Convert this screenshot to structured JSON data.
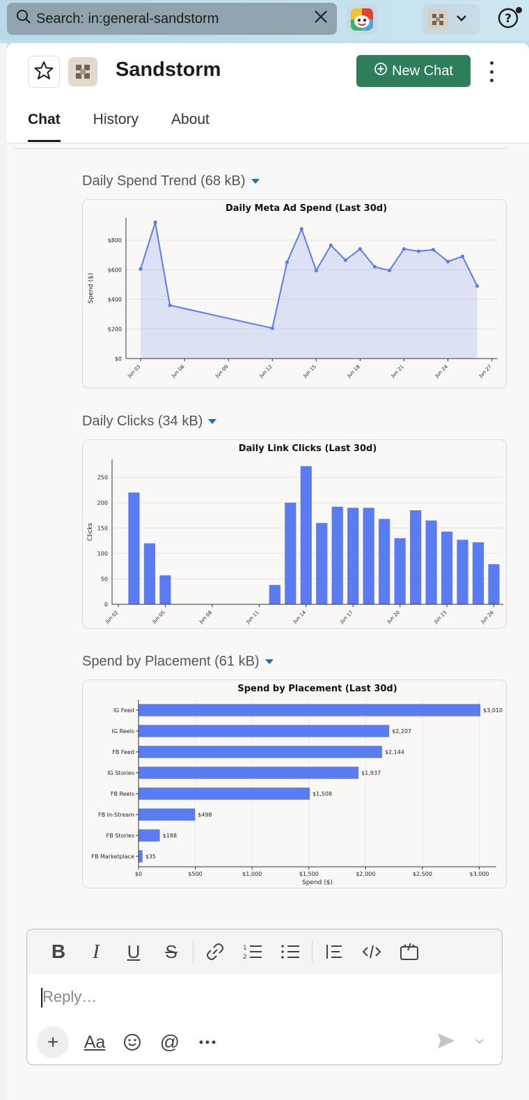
{
  "search": {
    "text": "Search: in:general-sandstorm"
  },
  "header": {
    "title": "Sandstorm",
    "new_chat_label": "New Chat",
    "tabs": [
      {
        "label": "Chat"
      },
      {
        "label": "History"
      },
      {
        "label": "About"
      }
    ]
  },
  "attachments": [
    {
      "label": "Daily Spend Trend (68 kB)"
    },
    {
      "label": "Daily Clicks (34 kB)"
    },
    {
      "label": "Spend by Placement (61 kB)"
    }
  ],
  "composer": {
    "placeholder": "Reply…",
    "format_label": "Aa"
  },
  "colors": {
    "accent_green": "#2e7d5b",
    "series_blue": "#5b7cf0",
    "caret_blue": "#1d6fb8"
  },
  "chart_data": [
    {
      "type": "area",
      "title": "Daily Meta Ad Spend (Last 30d)",
      "xlabel": "",
      "ylabel": "Spend ($)",
      "x": [
        "Jun 03",
        "Jun 04",
        "Jun 05",
        "Jun 12",
        "Jun 13",
        "Jun 14",
        "Jun 15",
        "Jun 16",
        "Jun 17",
        "Jun 18",
        "Jun 19",
        "Jun 20",
        "Jun 21",
        "Jun 22",
        "Jun 23",
        "Jun 24",
        "Jun 25",
        "Jun 26"
      ],
      "x_day": [
        3,
        4,
        5,
        12,
        13,
        14,
        15,
        16,
        17,
        18,
        19,
        20,
        21,
        22,
        23,
        24,
        25,
        26
      ],
      "values": [
        605,
        920,
        360,
        205,
        650,
        875,
        595,
        765,
        665,
        740,
        620,
        595,
        740,
        725,
        735,
        655,
        690,
        490
      ],
      "ylim": [
        0,
        950
      ],
      "yticks": [
        0,
        200,
        400,
        600,
        800
      ],
      "ytick_labels": [
        "$0",
        "$200",
        "$400",
        "$600",
        "$800"
      ],
      "xticks": [
        "Jun 03",
        "Jun 06",
        "Jun 09",
        "Jun 12",
        "Jun 15",
        "Jun 18",
        "Jun 21",
        "Jun 24",
        "Jun 27"
      ],
      "grid": true
    },
    {
      "type": "bar",
      "title": "Daily Link Clicks (Last 30d)",
      "xlabel": "",
      "ylabel": "Clicks",
      "x": [
        "Jun 03",
        "Jun 04",
        "Jun 05",
        "Jun 12",
        "Jun 13",
        "Jun 14",
        "Jun 15",
        "Jun 16",
        "Jun 17",
        "Jun 18",
        "Jun 19",
        "Jun 20",
        "Jun 21",
        "Jun 22",
        "Jun 23",
        "Jun 24",
        "Jun 25",
        "Jun 26"
      ],
      "x_day": [
        3,
        4,
        5,
        12,
        13,
        14,
        15,
        16,
        17,
        18,
        19,
        20,
        21,
        22,
        23,
        24,
        25,
        26
      ],
      "values": [
        220,
        120,
        57,
        38,
        200,
        272,
        160,
        192,
        190,
        190,
        168,
        130,
        185,
        165,
        143,
        127,
        122,
        79
      ],
      "ylim": [
        0,
        285
      ],
      "yticks": [
        0,
        50,
        100,
        150,
        200,
        250
      ],
      "xticks": [
        "Jun 02",
        "Jun 05",
        "Jun 08",
        "Jun 11",
        "Jun 14",
        "Jun 17",
        "Jun 20",
        "Jun 23",
        "Jun 26"
      ],
      "grid": true
    },
    {
      "type": "bar",
      "orientation": "horizontal",
      "title": "Spend by Placement (Last 30d)",
      "xlabel": "Spend ($)",
      "ylabel": "",
      "categories": [
        "IG Feed",
        "IG Reels",
        "FB Feed",
        "IG Stories",
        "FB Reels",
        "FB In-Stream",
        "FB Stories",
        "FB Marketplace"
      ],
      "values": [
        3010,
        2207,
        2144,
        1937,
        1508,
        498,
        188,
        35
      ],
      "value_labels": [
        "$3,010",
        "$2,207",
        "$2,144",
        "$1,937",
        "$1,508",
        "$498",
        "$188",
        "$35"
      ],
      "xlim": [
        0,
        3150
      ],
      "xticks": [
        0,
        500,
        1000,
        1500,
        2000,
        2500,
        3000
      ],
      "xtick_labels": [
        "$0",
        "$500",
        "$1,000",
        "$1,500",
        "$2,000",
        "$2,500",
        "$3,000"
      ],
      "grid": true
    }
  ]
}
